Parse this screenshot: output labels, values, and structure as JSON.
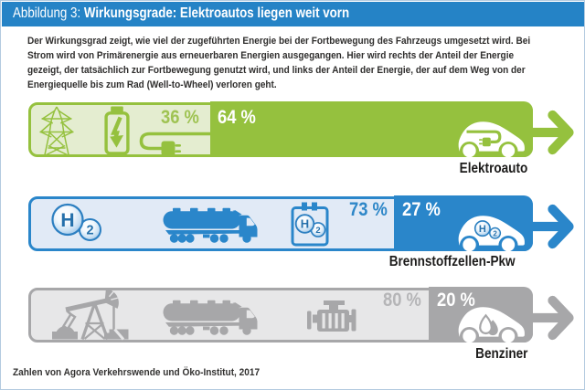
{
  "header": {
    "prefix": "Abbildung 3:",
    "title": "Wirkungsgrade: Elektroautos liegen weit vorn",
    "bg_color": "#2583c6",
    "text_color": "#ffffff"
  },
  "intro": {
    "lines": [
      "Der Wirkungsgrad zeigt, wie viel der zugeführten Energie bei der Fortbewegung des Fahrzeugs umgesetzt wird. Bei",
      "Strom wird von Primärenergie aus erneuerbaren Energien ausgegangen. Hier wird rechts der Anteil der Energie",
      "gezeigt, der tatsächlich zur Fortbewegung genutzt wird, und links der Anteil der Energie, der auf dem Weg von der",
      "Energiequelle bis zum Rad (Well-to-Wheel) verloren geht."
    ]
  },
  "source_note": "Zahlen von Agora Verkehrswende und Öko-Institut, 2017",
  "chart_data": {
    "type": "bar",
    "orientation": "horizontal",
    "stacked": true,
    "title": "Wirkungsgrade: Elektroautos liegen weit vorn",
    "categories": [
      "Elektroauto",
      "Brennstoffzellen-Pkw",
      "Benziner"
    ],
    "series": [
      {
        "name": "Anteil der Energie, der auf dem Weg von der Energiequelle bis zum Rad (Well-to-Wheel) verloren geht",
        "values": [
          36,
          73,
          80
        ]
      },
      {
        "name": "Anteil der Energie, der tatsächlich zur Fortbewegung genutzt wird (Wirkungsgrad)",
        "values": [
          64,
          27,
          20
        ]
      }
    ],
    "unit": "%",
    "value_range": [
      0,
      100
    ],
    "source": "Zahlen von Agora Verkehrswende und Öko-Institut, 2017"
  },
  "bars": [
    {
      "label": "Elektroauto",
      "lost_pct": 36,
      "used_pct": 64,
      "lost_text": "36 %",
      "used_text": "64 %",
      "colors": {
        "accent": "#95c13e",
        "fill": "#e4edd0",
        "lost_label": "#9fc353"
      },
      "icons": [
        "power-pylon-icon",
        "battery-charge-icon",
        "plug-cable-icon",
        "electric-car-icon",
        "arrow-right-icon"
      ]
    },
    {
      "label": "Brennstoffzellen-Pkw",
      "lost_pct": 73,
      "used_pct": 27,
      "lost_text": "73 %",
      "used_text": "27 %",
      "colors": {
        "accent": "#2a86ca",
        "fill": "#e1eaf6",
        "lost_label": "#2e87c8"
      },
      "icons": [
        "h2-molecule-icon",
        "tanker-truck-icon",
        "fuel-cell-icon",
        "hydrogen-car-icon",
        "arrow-right-icon"
      ],
      "h2_symbol": {
        "element": "H",
        "subscript": "2"
      }
    },
    {
      "label": "Benziner",
      "lost_pct": 80,
      "used_pct": 20,
      "lost_text": "80 %",
      "used_text": "20 %",
      "colors": {
        "accent": "#a7a7a9",
        "fill": "#e7e7e8",
        "lost_label": "#b5b5b7"
      },
      "icons": [
        "oil-pump-icon",
        "tanker-truck-icon",
        "engine-icon",
        "petrol-car-icon",
        "arrow-right-icon"
      ]
    }
  ],
  "layout": {
    "bar_tops": [
      112,
      215,
      315
    ],
    "label_tops": [
      177.5,
      279.5,
      380.5
    ],
    "label_right_offsets": [
      63,
      77,
      63
    ],
    "arrow_center_offset": 33.5,
    "pct_lost_gaps": [
      12,
      7.5,
      9.5
    ],
    "pct_tops": [
      6,
      4.5,
      3.5
    ]
  }
}
